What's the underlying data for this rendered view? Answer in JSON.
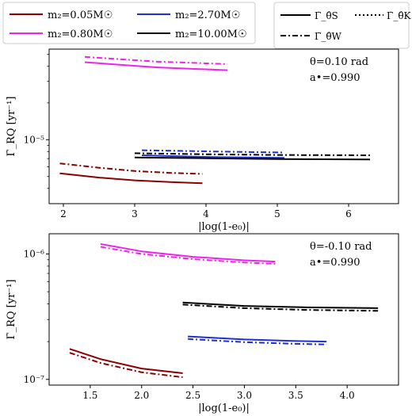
{
  "legend_masses": {
    "items": [
      {
        "label": "m₂=0.05M☉",
        "color": "#8b0000"
      },
      {
        "label": "m₂=2.70M☉",
        "color": "#1f2fd0"
      },
      {
        "label": "m₂=0.80M☉",
        "color": "#ee22ee"
      },
      {
        "label": "m₂=10.00M☉",
        "color": "#000000"
      }
    ]
  },
  "legend_styles": {
    "items": [
      {
        "label": "Γ̇_θ̂S",
        "style": "solid"
      },
      {
        "label": "Γ̇_θ̂K",
        "style": "dotted"
      },
      {
        "label": "Γ̇_θ̂W",
        "style": "dashdot"
      }
    ]
  },
  "chart_data": [
    {
      "type": "line",
      "xlabel": "|log(1-e₀)|",
      "ylabel": "Γ̇_RQ [yr⁻¹]",
      "annotation_lines": [
        "θ=0.10 rad",
        "a•=0.990"
      ],
      "yscale": "log",
      "xlim": [
        1.8,
        6.7
      ],
      "ylim": [
        3e-06,
        5.5e-05
      ],
      "x_ticks": [
        2,
        3,
        4,
        5,
        6
      ],
      "y_ticks": [
        1e-05
      ],
      "y_tick_labels": [
        "10⁻⁵"
      ],
      "series": [
        {
          "name": "m₂=0.80M☉",
          "color": "#ee22ee",
          "style": "solid",
          "x": [
            2.3,
            3.3,
            4.3
          ],
          "y": [
            4.3e-05,
            3.9e-05,
            3.7e-05
          ]
        },
        {
          "name": "m₂=0.80M☉",
          "color": "#ee22ee",
          "style": "dashdot",
          "x": [
            2.3,
            3.3,
            4.3
          ],
          "y": [
            4.75e-05,
            4.35e-05,
            4.15e-05
          ]
        },
        {
          "name": "m₂=2.70M☉",
          "color": "#1f2fd0",
          "style": "solid",
          "x": [
            3.1,
            4.1,
            5.1
          ],
          "y": [
            7.45e-06,
            7.2e-06,
            7.1e-06
          ]
        },
        {
          "name": "m₂=2.70M☉",
          "color": "#1f2fd0",
          "style": "dashdot",
          "x": [
            3.1,
            4.1,
            5.1
          ],
          "y": [
            8.2e-06,
            8e-06,
            7.85e-06
          ]
        },
        {
          "name": "m₂=10.00M☉",
          "color": "#000000",
          "style": "solid",
          "x": [
            3.0,
            4.0,
            5.0,
            6.3
          ],
          "y": [
            7.15e-06,
            7.05e-06,
            6.95e-06,
            6.9e-06
          ]
        },
        {
          "name": "m₂=10.00M☉",
          "color": "#000000",
          "style": "dashdot",
          "x": [
            3.0,
            4.0,
            5.0,
            6.3
          ],
          "y": [
            7.75e-06,
            7.6e-06,
            7.5e-06,
            7.45e-06
          ]
        },
        {
          "name": "m₂=0.05M☉",
          "color": "#8b0000",
          "style": "solid",
          "x": [
            1.95,
            2.5,
            3.0,
            3.5,
            3.95
          ],
          "y": [
            5.3e-06,
            4.9e-06,
            4.65e-06,
            4.5e-06,
            4.4e-06
          ]
        },
        {
          "name": "m₂=0.05M☉",
          "color": "#8b0000",
          "style": "dashdot",
          "x": [
            1.95,
            2.5,
            3.0,
            3.5,
            3.95
          ],
          "y": [
            6.4e-06,
            5.9e-06,
            5.55e-06,
            5.35e-06,
            5.25e-06
          ]
        }
      ]
    },
    {
      "type": "line",
      "xlabel": "|log(1-e₀)|",
      "ylabel": "Γ̇_RQ [yr⁻¹]",
      "annotation_lines": [
        "θ=-0.10 rad",
        "a•=0.990"
      ],
      "yscale": "log",
      "xlim": [
        1.1,
        4.5
      ],
      "ylim": [
        9e-08,
        1.45e-06
      ],
      "x_ticks": [
        1.5,
        2.0,
        2.5,
        3.0,
        3.5,
        4.0
      ],
      "y_ticks": [
        1e-07,
        1e-06
      ],
      "y_tick_labels": [
        "10⁻⁷",
        "10⁻⁶"
      ],
      "series": [
        {
          "name": "m₂=0.80M☉",
          "color": "#ee22ee",
          "style": "solid",
          "x": [
            1.6,
            2.0,
            2.5,
            3.0,
            3.3
          ],
          "y": [
            1.2e-06,
            1.05e-06,
            9.5e-07,
            8.9e-07,
            8.7e-07
          ]
        },
        {
          "name": "m₂=0.80M☉",
          "color": "#ee22ee",
          "style": "dashdot",
          "x": [
            1.6,
            2.0,
            2.5,
            3.0,
            3.3
          ],
          "y": [
            1.14e-06,
            1e-06,
            9.1e-07,
            8.55e-07,
            8.35e-07
          ]
        },
        {
          "name": "m₂=10.00M☉",
          "color": "#000000",
          "style": "solid",
          "x": [
            2.4,
            3.0,
            3.6,
            4.3
          ],
          "y": [
            4.1e-07,
            3.85e-07,
            3.75e-07,
            3.7e-07
          ]
        },
        {
          "name": "m₂=10.00M☉",
          "color": "#000000",
          "style": "dashdot",
          "x": [
            2.4,
            3.0,
            3.6,
            4.3
          ],
          "y": [
            3.95e-07,
            3.7e-07,
            3.58e-07,
            3.52e-07
          ]
        },
        {
          "name": "m₂=2.70M☉",
          "color": "#1f2fd0",
          "style": "solid",
          "x": [
            2.45,
            3.0,
            3.5,
            3.8
          ],
          "y": [
            2.2e-07,
            2.08e-07,
            2.02e-07,
            2e-07
          ]
        },
        {
          "name": "m₂=2.70M☉",
          "color": "#1f2fd0",
          "style": "dashdot",
          "x": [
            2.45,
            3.0,
            3.5,
            3.8
          ],
          "y": [
            2.1e-07,
            1.98e-07,
            1.92e-07,
            1.9e-07
          ]
        },
        {
          "name": "m₂=0.05M☉",
          "color": "#8b0000",
          "style": "solid",
          "x": [
            1.3,
            1.6,
            2.0,
            2.4
          ],
          "y": [
            1.75e-07,
            1.45e-07,
            1.22e-07,
            1.12e-07
          ]
        },
        {
          "name": "m₂=0.05M☉",
          "color": "#8b0000",
          "style": "dashdot",
          "x": [
            1.3,
            1.6,
            2.0,
            2.4
          ],
          "y": [
            1.63e-07,
            1.35e-07,
            1.14e-07,
            1.04e-07
          ]
        }
      ]
    }
  ]
}
